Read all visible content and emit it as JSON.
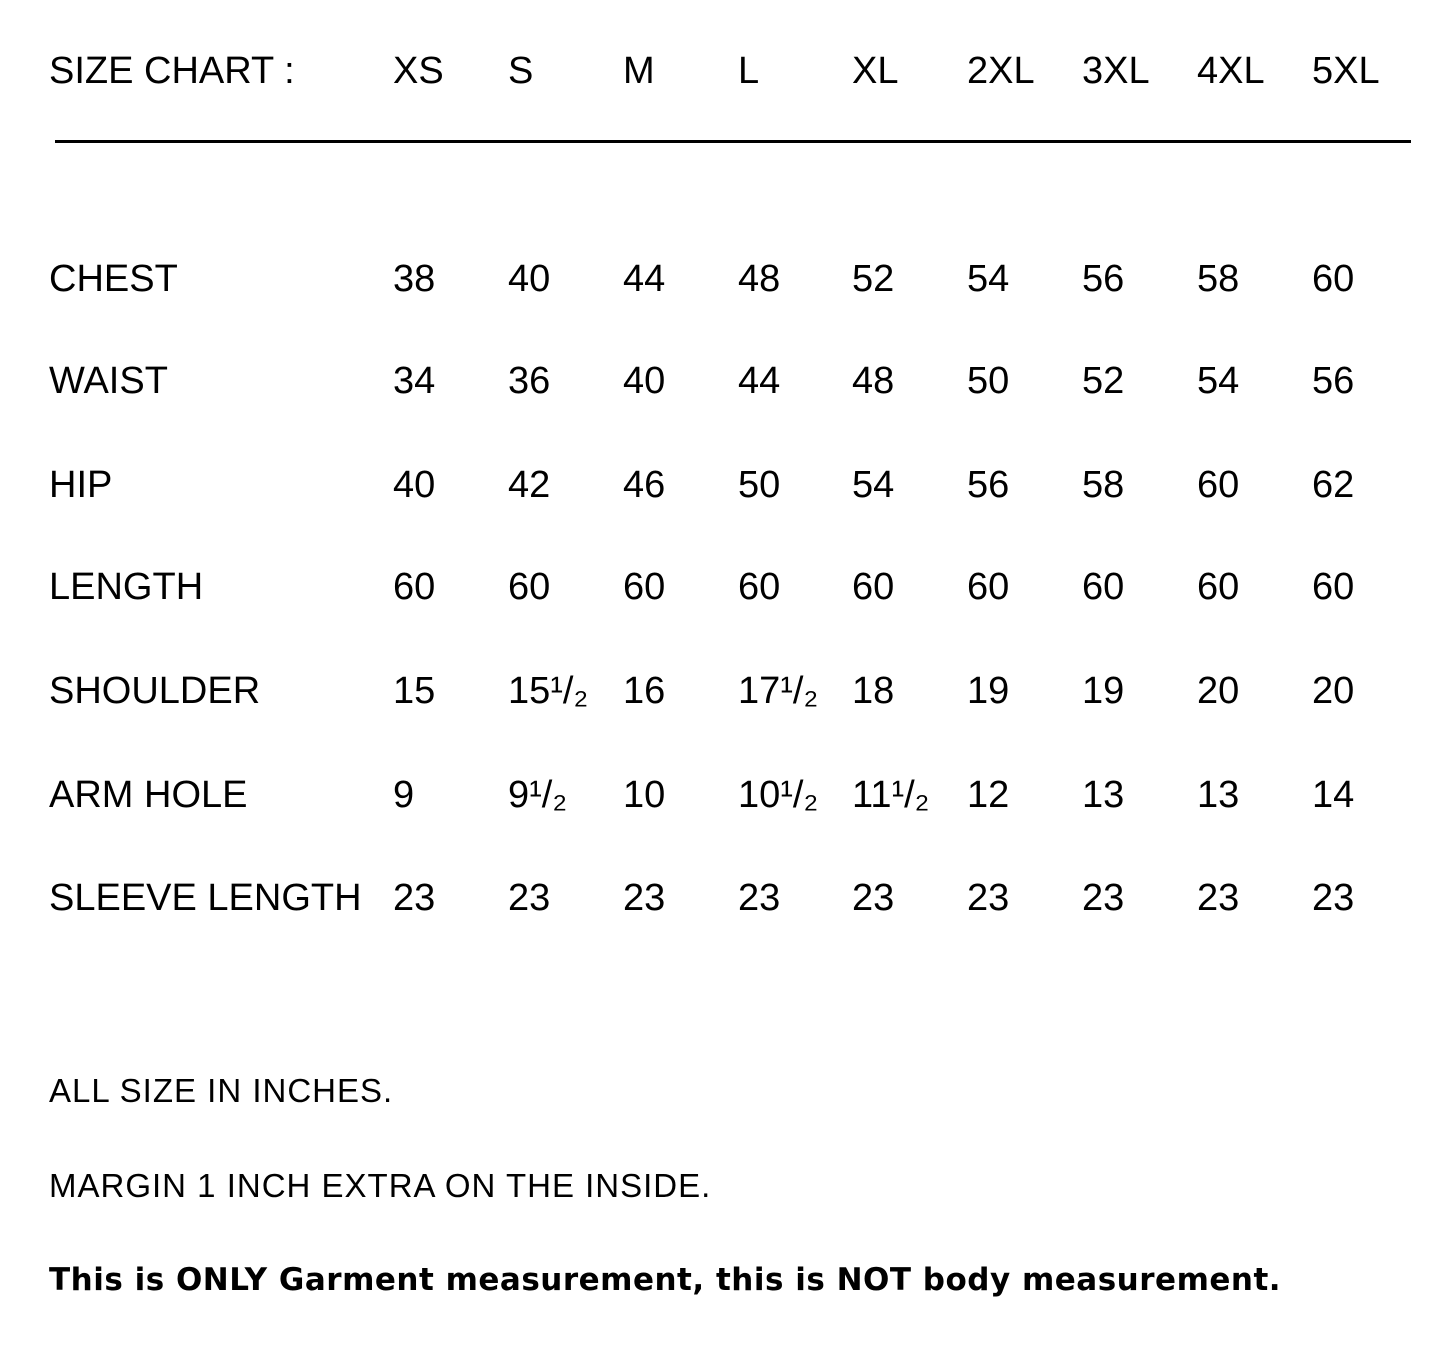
{
  "title": "SIZE CHART :",
  "sizes": [
    "XS",
    "S",
    "M",
    "L",
    "XL",
    "2XL",
    "3XL",
    "4XL",
    "5XL"
  ],
  "rows": [
    {
      "label": "CHEST",
      "values": [
        "38",
        "40",
        "44",
        "48",
        "52",
        "54",
        "56",
        "58",
        "60"
      ]
    },
    {
      "label": "WAIST",
      "values": [
        "34",
        "36",
        "40",
        "44",
        "48",
        "50",
        "52",
        "54",
        "56"
      ]
    },
    {
      "label": "HIP",
      "values": [
        "40",
        "42",
        "46",
        "50",
        "54",
        "56",
        "58",
        "60",
        "62"
      ]
    },
    {
      "label": "LENGTH",
      "values": [
        "60",
        "60",
        "60",
        "60",
        "60",
        "60",
        "60",
        "60",
        "60"
      ]
    },
    {
      "label": "SHOULDER",
      "values": [
        "15",
        "15¹/₂",
        "16",
        "17¹/₂",
        "18",
        "19",
        "19",
        "20",
        "20"
      ]
    },
    {
      "label": "ARM HOLE",
      "values": [
        "9",
        "9¹/₂",
        "10",
        "10¹/₂",
        "11¹/₂",
        "12",
        "13",
        "13",
        "14"
      ]
    },
    {
      "label": "SLEEVE LENGTH",
      "values": [
        "23",
        "23",
        "23",
        "23",
        "23",
        "23",
        "23",
        "23",
        "23"
      ]
    }
  ],
  "notes": {
    "units": "ALL SIZE IN INCHES.",
    "margin": "MARGIN 1 INCH EXTRA ON THE INSIDE.",
    "disclaimer": "This is ONLY Garment measurement, this is NOT body measurement."
  }
}
